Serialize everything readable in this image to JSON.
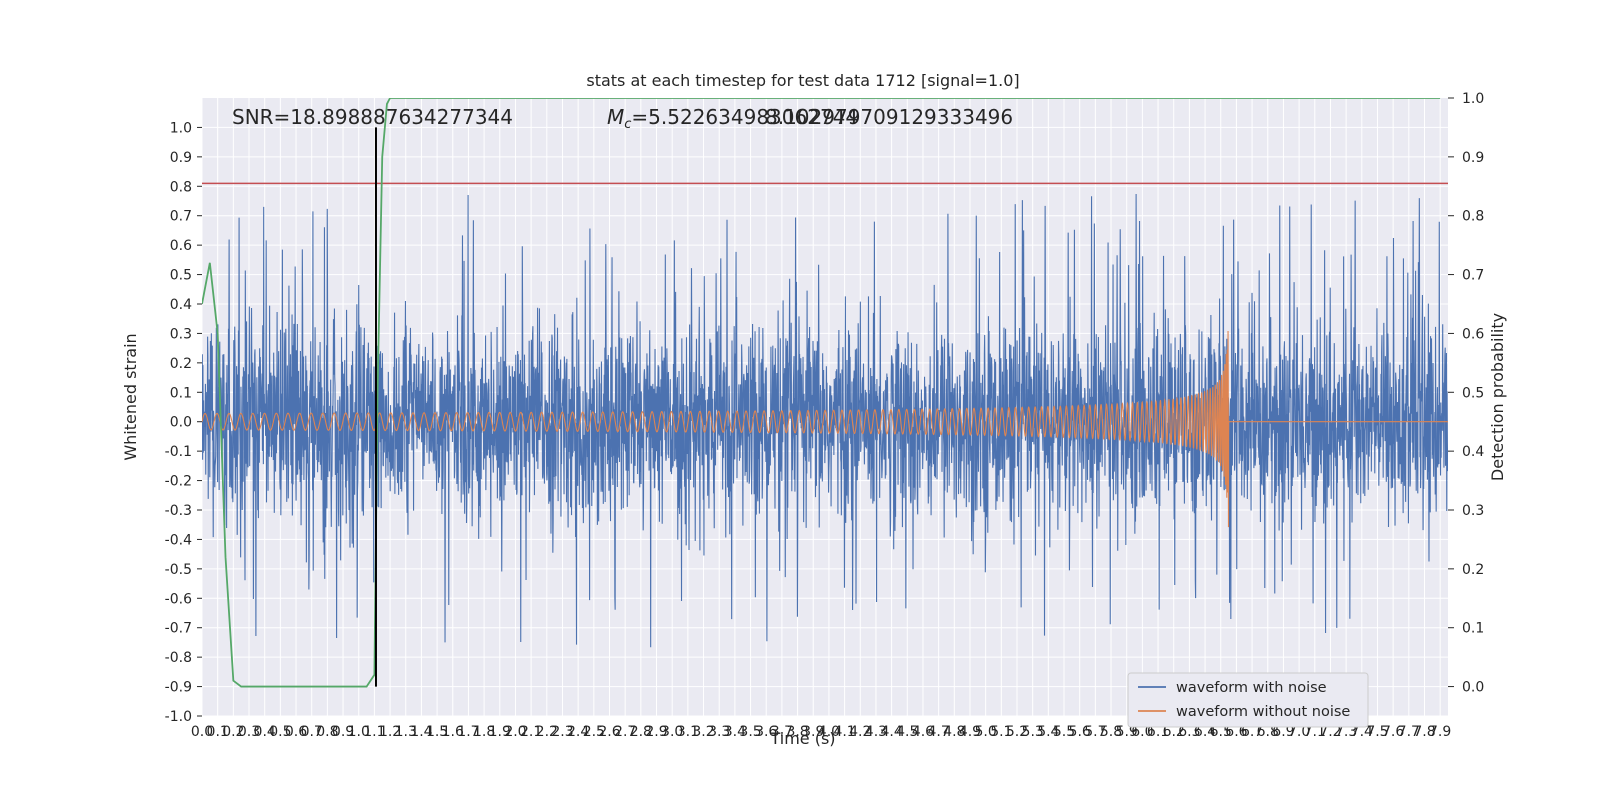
{
  "chart_data": {
    "type": "line",
    "title": "stats at each timestep for test data 1712 [signal=1.0]",
    "xlabel": "Time (s)",
    "ylabel": "Whitened strain",
    "ylabel_right": "Detection probability",
    "xlim": [
      0.0,
      7.95
    ],
    "ylim": [
      -1.0,
      1.1
    ],
    "ylim_right": [
      -0.05,
      1.0
    ],
    "x_ticks": [
      "0.0",
      "0.1",
      "0.2",
      "0.3",
      "0.4",
      "0.5",
      "0.6",
      "0.7",
      "0.8",
      "0.9",
      "1.0",
      "1.1",
      "1.2",
      "1.3",
      "1.4",
      "1.5",
      "1.6",
      "1.7",
      "1.8",
      "1.9",
      "2.0",
      "2.1",
      "2.2",
      "2.3",
      "2.4",
      "2.5",
      "2.6",
      "2.7",
      "2.8",
      "2.9",
      "3.0",
      "3.1",
      "3.2",
      "3.3",
      "3.4",
      "3.5",
      "3.6",
      "3.7",
      "3.8",
      "3.9",
      "4.0",
      "4.1",
      "4.2",
      "4.3",
      "4.4",
      "4.5",
      "4.6",
      "4.7",
      "4.8",
      "4.9",
      "5.0",
      "5.1",
      "5.2",
      "5.3",
      "5.4",
      "5.5",
      "5.6",
      "5.7",
      "5.8",
      "5.9",
      "6.0",
      "6.1",
      "6.2",
      "6.3",
      "6.4",
      "6.5",
      "6.6",
      "6.7",
      "6.8",
      "6.9",
      "7.0",
      "7.1",
      "7.2",
      "7.3",
      "7.4",
      "7.5",
      "7.6",
      "7.7",
      "7.8",
      "7.9"
    ],
    "x_tick_labels": [
      "0.0",
      "0.1",
      "0.2",
      "0.3",
      "0.4",
      "0.5",
      "0.6",
      "0.7",
      "0.8",
      "0.9",
      "1.0",
      "1.1",
      "1.2",
      "1.3",
      "1.4",
      "1.5",
      "1.6",
      "1.7",
      "1.8",
      "1.9",
      "2.0",
      "2.1",
      "2.2",
      "2.3",
      "2.4",
      "2.5",
      "2.6",
      "2.7",
      "2.8",
      "2.9",
      "3.0",
      "3.1",
      "3.2",
      "3.3",
      "3.4",
      "3.5",
      "3.6",
      "3.7",
      "3.8",
      "3.9",
      "4.0",
      "4.1",
      "4.2",
      "4.3",
      "4.4",
      "4.5",
      "4.6",
      "4.7",
      "4.8",
      "4.9",
      "5.0",
      "5.1",
      "5.2",
      "5.3",
      "5.4",
      "5.5",
      "5.6",
      "5.7",
      "5.8",
      "5.9",
      "6.0",
      "6.1",
      "6.2",
      "6.3",
      "6.4",
      "6.5",
      "6.6",
      "6.7",
      "6.8",
      "6.9",
      "7.0",
      "7.1",
      "7.2",
      "7.3",
      "7.4",
      "7.5",
      "7.6",
      "7.7",
      "7.8",
      "7.9"
    ],
    "y_ticks": [
      "-1.0",
      "-0.9",
      "-0.8",
      "-0.7",
      "-0.6",
      "-0.5",
      "-0.4",
      "-0.3",
      "-0.2",
      "-0.1",
      "0.0",
      "0.1",
      "0.2",
      "0.3",
      "0.4",
      "0.5",
      "0.6",
      "0.7",
      "0.8",
      "0.9",
      "1.0"
    ],
    "y_ticks_right": [
      "0.0",
      "0.1",
      "0.2",
      "0.3",
      "0.4",
      "0.5",
      "0.6",
      "0.7",
      "0.8",
      "0.9",
      "1.0"
    ],
    "annotations": {
      "snr": "SNR=18.898887634277344",
      "mc_prefix": "M",
      "mc_sub": "c",
      "mc_value": "=5.522634983062744",
      "overlap": "8.102979709129333496"
    },
    "series": [
      {
        "name": "waveform with noise",
        "color": "#4c72b0",
        "description": "dense noise trace, amplitude ~±0.4 with spikes up to ±0.9"
      },
      {
        "name": "waveform without noise",
        "color": "#dd8452",
        "description": "chirp, amplitude grows from ~0.03 to ~0.37 at merger t≈6.55 s, zero after"
      },
      {
        "name": "detection probability",
        "color": "#55a868",
        "axis": "right",
        "x": [
          0.0,
          0.05,
          0.1,
          0.15,
          0.2,
          0.25,
          0.3,
          0.4,
          0.6,
          0.8,
          1.0,
          1.05,
          1.1,
          1.12,
          1.15,
          1.18,
          1.2,
          7.9
        ],
        "y": [
          0.65,
          0.72,
          0.6,
          0.22,
          0.01,
          0.0,
          0.0,
          0.0,
          0.0,
          0.0,
          0.0,
          0.0,
          0.02,
          0.5,
          0.9,
          0.99,
          1.0,
          1.0
        ]
      }
    ],
    "threshold_line": {
      "color": "#c44e52",
      "y": 0.81
    },
    "vertical_marker": {
      "color": "#000000",
      "x": 1.11,
      "y_from": -0.9,
      "y_to": 1.0
    },
    "merger_time": 6.55,
    "legend": {
      "position": "lower-right",
      "entries": [
        "waveform with noise",
        "waveform without noise"
      ]
    },
    "grid": true,
    "background": "#eaeaf2"
  }
}
